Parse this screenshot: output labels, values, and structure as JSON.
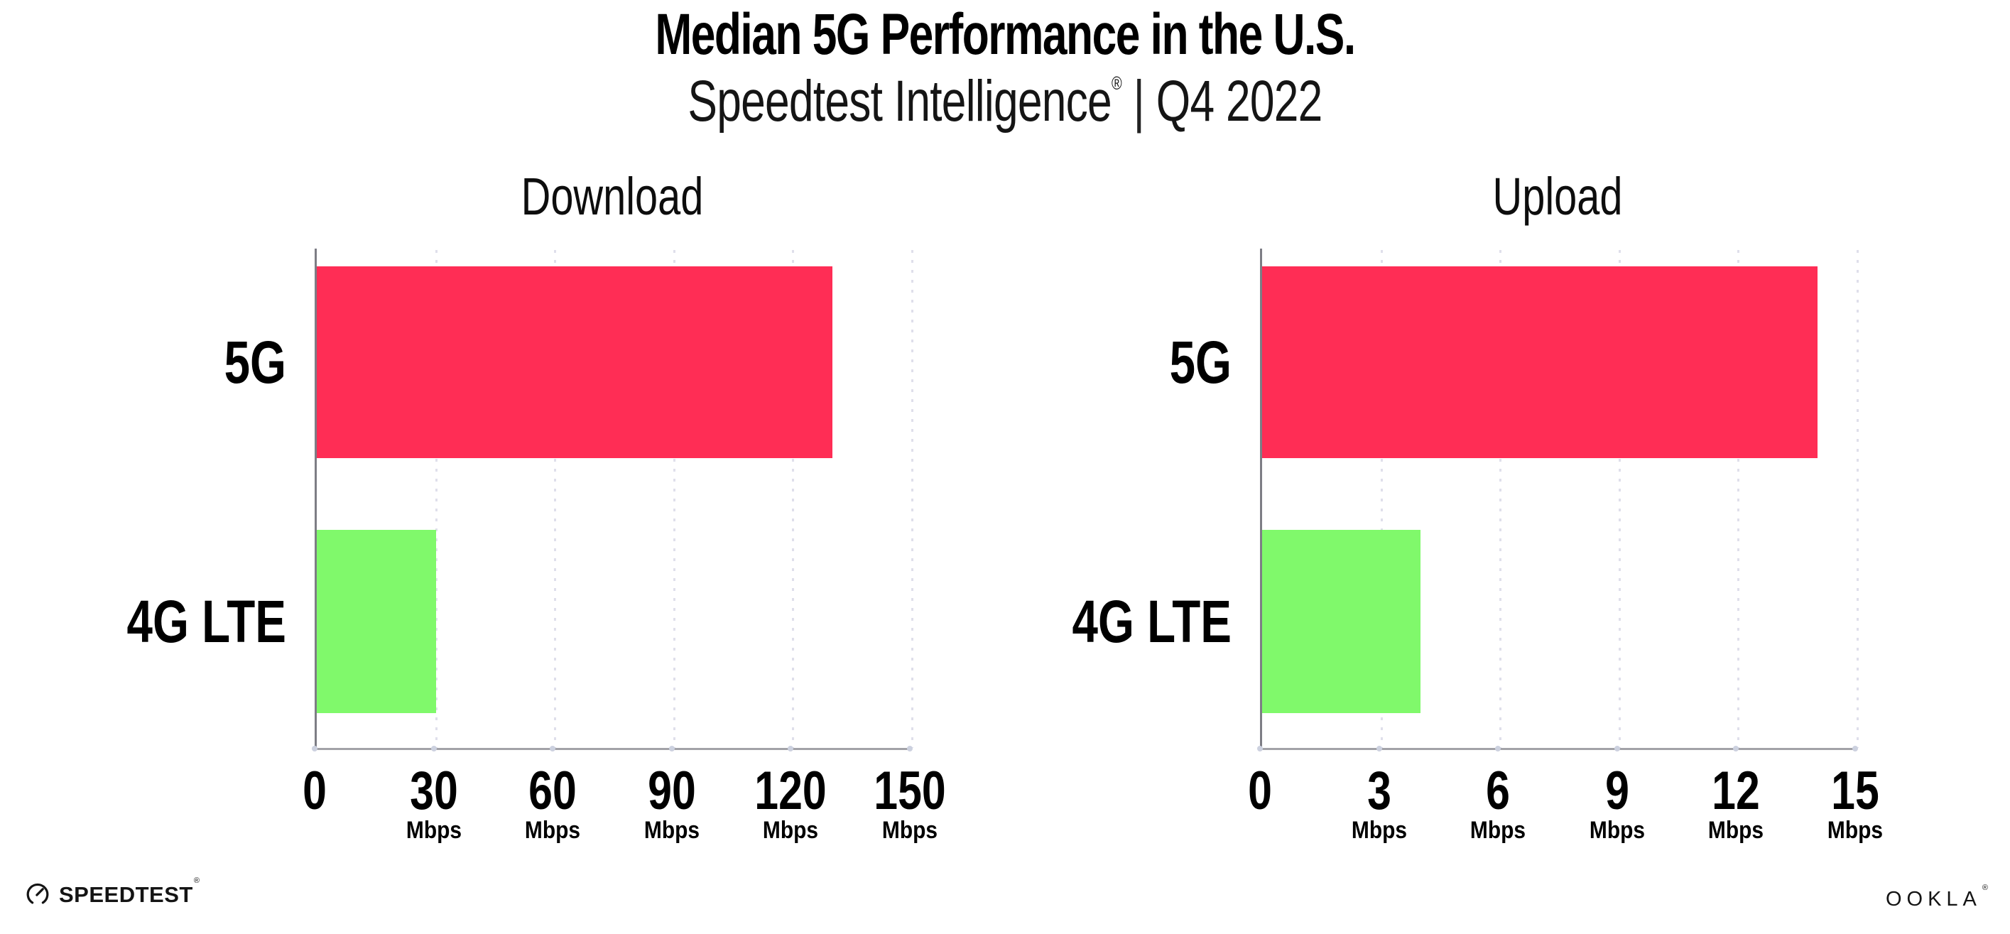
{
  "header": {
    "title": "Median 5G Performance in the U.S.",
    "subtitle": {
      "brand": "Speedtest Intelligence",
      "registered_mark": "®",
      "separator": "|",
      "period": "Q4 2022"
    }
  },
  "chart_data": [
    {
      "type": "bar",
      "orientation": "horizontal",
      "title": "Download",
      "unit": "Mbps",
      "categories": [
        "5G",
        "4G LTE"
      ],
      "values": [
        130,
        30
      ],
      "xlim": [
        0,
        150
      ],
      "xticks": [
        0,
        30,
        60,
        90,
        120,
        150
      ],
      "bar_colors": [
        "#FF2D55",
        "#80F96B"
      ],
      "grid": "dotted-vertical-gridlines",
      "legend": "none"
    },
    {
      "type": "bar",
      "orientation": "horizontal",
      "title": "Upload",
      "unit": "Mbps",
      "categories": [
        "5G",
        "4G LTE"
      ],
      "values": [
        14,
        4
      ],
      "xlim": [
        0,
        15
      ],
      "xticks": [
        0,
        3,
        6,
        9,
        12,
        15
      ],
      "bar_colors": [
        "#FF2D55",
        "#80F96B"
      ],
      "grid": "dotted-vertical-gridlines",
      "legend": "none"
    }
  ],
  "colors": {
    "bar_5g": "#FF2D55",
    "bar_4g_lte": "#80F96B",
    "y_axis_line": "#7D7D85",
    "x_axis_line": "#A2A2A8",
    "gridline": "#DFDFEB",
    "tick_dot": "#CCD1DF",
    "text": "#000000",
    "background": "#FFFFFF"
  },
  "footer": {
    "speedtest_logo": {
      "icon": "speedtest-gauge-icon",
      "text": "SPEEDTEST",
      "registered_mark": "®"
    },
    "ookla_logo": {
      "text": "OOKLA",
      "registered_mark": "®"
    }
  }
}
